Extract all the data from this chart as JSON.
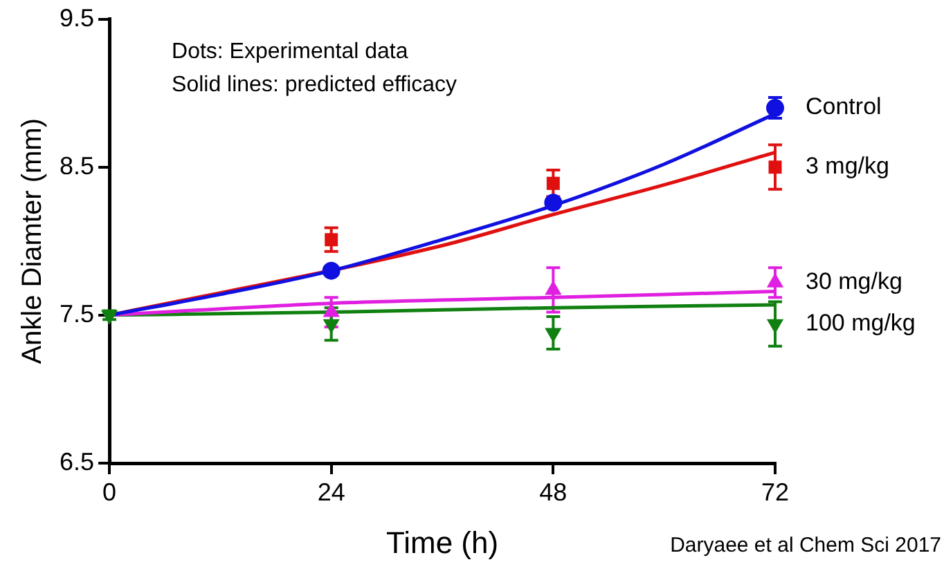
{
  "chart_data": {
    "type": "scatter",
    "xlabel": "Time (h)",
    "ylabel": "Ankle Diamter (mm)",
    "annotations": [
      "Dots: Experimental data",
      "Solid lines: predicted efficacy",
      "Daryaee et al Chem Sci 2017"
    ],
    "xlim": [
      0,
      72
    ],
    "xticks": [
      0,
      24,
      48,
      72
    ],
    "ylim": [
      6.5,
      9.5
    ],
    "yticks": [
      6.5,
      7.5,
      8.5,
      9.5
    ],
    "grid": false,
    "legend": false,
    "series": [
      {
        "name": "Control",
        "color": "#1010e0",
        "marker": "circle",
        "x": [
          24,
          48,
          72
        ],
        "values": [
          7.8,
          8.26,
          8.9
        ],
        "errors": [
          null,
          null,
          0.07
        ]
      },
      {
        "name": "3 mg/kg",
        "color": "#e01010",
        "marker": "square",
        "x": [
          24,
          48,
          72
        ],
        "values": [
          8.01,
          8.39,
          8.5
        ],
        "errors": [
          0.08,
          0.09,
          0.15
        ]
      },
      {
        "name": "30 mg/kg",
        "color": "#e020e0",
        "marker": "triangle",
        "x": [
          24,
          48,
          72
        ],
        "values": [
          7.52,
          7.67,
          7.72
        ],
        "errors": [
          0.1,
          0.15,
          0.1
        ]
      },
      {
        "name": "100 mg/kg",
        "color": "#108010",
        "marker": "triangle-down",
        "x": [
          0,
          24,
          48,
          72
        ],
        "values": [
          7.5,
          7.44,
          7.38,
          7.44
        ],
        "errors": [
          0.03,
          0.11,
          0.11,
          0.15
        ]
      },
      {
        "type": "line",
        "color": "#1010e0",
        "marker": "none",
        "x": [
          0,
          12,
          24,
          36,
          48,
          60,
          72
        ],
        "values": [
          7.5,
          7.64,
          7.8,
          8.01,
          8.24,
          8.52,
          8.86
        ]
      },
      {
        "type": "line",
        "color": "#e01010",
        "marker": "none",
        "x": [
          0,
          36,
          48,
          60,
          72
        ],
        "values": [
          7.5,
          7.97,
          8.18,
          8.38,
          8.6
        ]
      },
      {
        "type": "line",
        "color": "#e020e0",
        "marker": "none",
        "x": [
          0,
          24,
          48,
          72
        ],
        "values": [
          7.5,
          7.58,
          7.62,
          7.66
        ]
      },
      {
        "type": "line",
        "color": "#108010",
        "marker": "none",
        "x": [
          0,
          24,
          48,
          72
        ],
        "values": [
          7.5,
          7.52,
          7.55,
          7.57
        ]
      }
    ]
  }
}
